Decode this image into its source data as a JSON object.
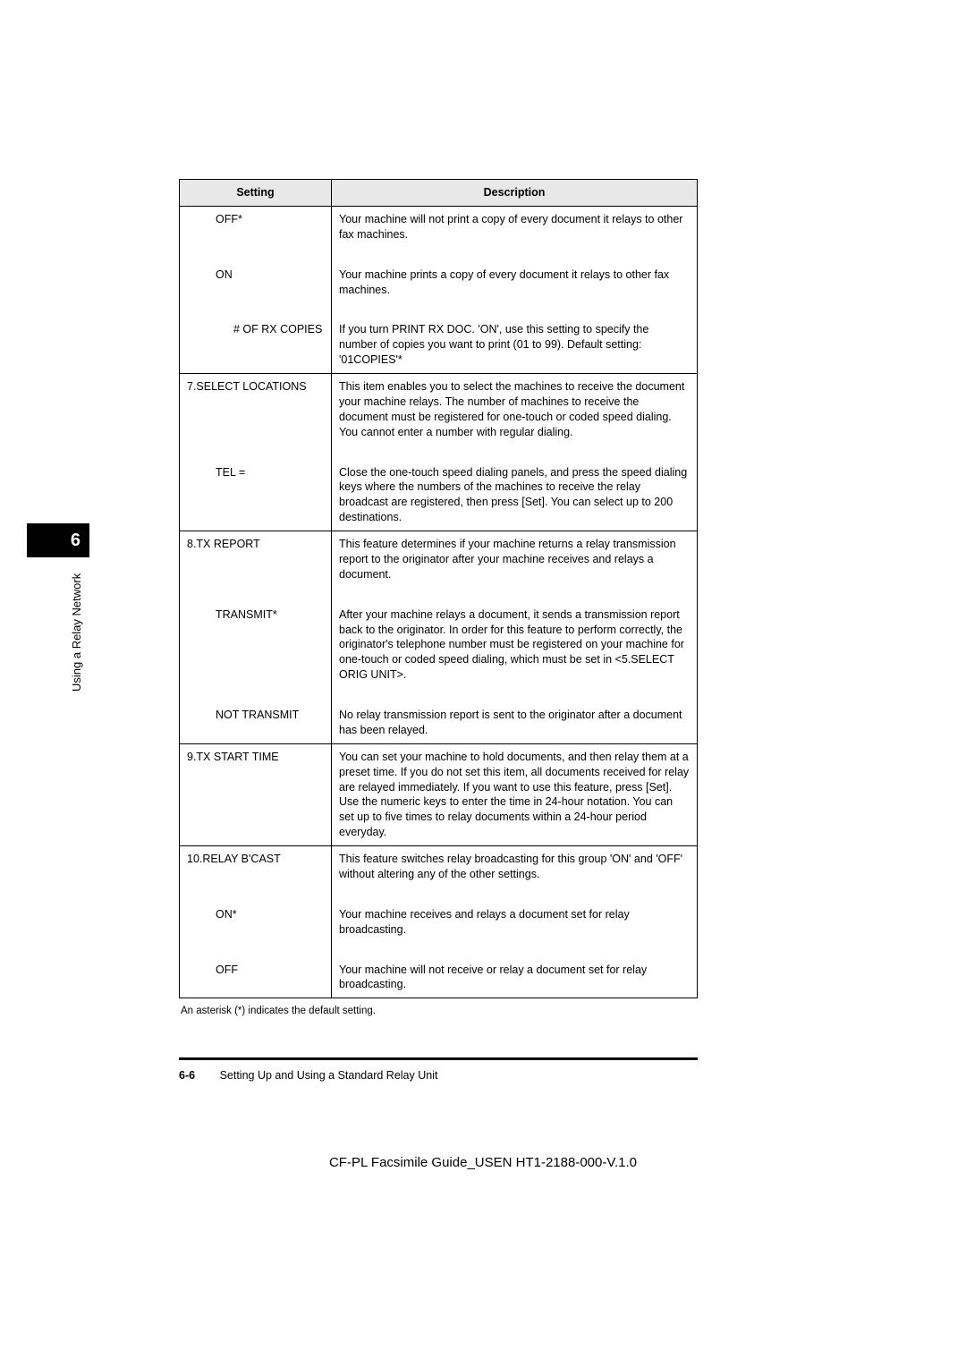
{
  "table": {
    "headers": {
      "setting": "Setting",
      "description": "Description"
    },
    "rows": [
      {
        "setting": "OFF*",
        "indent": 1,
        "description": "Your machine will not print a copy of every document it relays to other fax machines.",
        "top": false,
        "bottom": false
      },
      {
        "setting": "ON",
        "indent": 1,
        "description": "Your machine prints a copy of every document it relays to other fax machines.",
        "top": false,
        "bottom": false
      },
      {
        "setting": "# OF RX COPIES",
        "indent": 2,
        "description": "If you turn PRINT RX DOC. 'ON', use this setting to specify the number of copies you want to print (01 to 99).\nDefault setting: '01COPIES'*",
        "top": false,
        "bottom": true
      },
      {
        "setting": "7.SELECT LOCATIONS",
        "indent": 0,
        "description": "This item enables you to select the machines to receive the document your machine relays. The number of machines to receive the document must be registered for one-touch or coded speed dialing. You cannot enter a number with regular dialing.",
        "top": true,
        "bottom": false
      },
      {
        "setting": "TEL =",
        "indent": 1,
        "description": "Close the one-touch speed dialing panels, and press the speed dialing keys where the numbers of the machines to receive the relay broadcast are registered, then press [Set]. You can select up to 200 destinations.",
        "top": false,
        "bottom": true
      },
      {
        "setting": "8.TX REPORT",
        "indent": 0,
        "description": "This feature determines if your machine returns a relay transmission report to the originator after your machine receives and relays a document.",
        "top": true,
        "bottom": false
      },
      {
        "setting": "TRANSMIT*",
        "indent": 1,
        "description": "After your machine relays a document, it sends a transmission report back to the originator. In order for this feature to perform correctly, the originator's telephone number must be registered on your machine for one-touch or coded speed dialing, which must be set in <5.SELECT ORIG UNIT>.",
        "top": false,
        "bottom": false
      },
      {
        "setting": "NOT TRANSMIT",
        "indent": 1,
        "description": "No relay transmission report is sent to the originator after a document has been relayed.",
        "top": false,
        "bottom": true
      },
      {
        "setting": "9.TX START TIME",
        "indent": 0,
        "description": "You can set your machine to hold documents, and then relay them at a preset time. If you do not set this item, all documents received for relay are relayed immediately. If you want to use this feature, press [Set]. Use the numeric keys to enter the time in 24-hour notation. You can set up to five times to relay documents within a 24-hour period everyday.",
        "top": true,
        "bottom": true
      },
      {
        "setting": "10.RELAY B'CAST",
        "indent": 0,
        "description": "This feature switches relay broadcasting for this group 'ON' and 'OFF' without altering any of the other settings.",
        "top": true,
        "bottom": false
      },
      {
        "setting": "ON*",
        "indent": 1,
        "description": "Your machine receives and relays a document set for relay broadcasting.",
        "top": false,
        "bottom": false
      },
      {
        "setting": "OFF",
        "indent": 1,
        "description": "Your machine will not receive or relay a document set for relay broadcasting.",
        "top": false,
        "bottom": true
      }
    ]
  },
  "footnote": "An asterisk (*) indicates the default setting.",
  "footer": {
    "page_number": "6-6",
    "title": "Setting Up and Using a Standard Relay Unit"
  },
  "doc_id": "CF-PL Facsimile Guide_USEN HT1-2188-000-V.1.0",
  "side_tab": {
    "chapter": "6",
    "label": "Using a Relay Network"
  }
}
